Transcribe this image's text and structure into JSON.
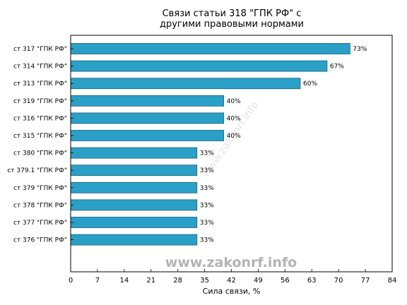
{
  "chart_data": {
    "type": "bar",
    "orientation": "horizontal",
    "title_lines": [
      "Связи статьи 318 \"ГПК РФ\" с",
      "другими правовыми нормами"
    ],
    "xlabel": "Сила связи, %",
    "xlim": [
      0,
      84
    ],
    "xticks": [
      0,
      7,
      14,
      21,
      28,
      35,
      42,
      49,
      56,
      63,
      70,
      77,
      84
    ],
    "categories": [
      "ст 317 \"ГПК РФ\"",
      "ст 314 \"ГПК РФ\"",
      "ст 313 \"ГПК РФ\"",
      "ст 319 \"ГПК РФ\"",
      "ст 316 \"ГПК РФ\"",
      "ст 315 \"ГПК РФ\"",
      "ст 380 \"ГПК РФ\"",
      "ст 379.1 \"ГПК РФ\"",
      "ст 379 \"ГПК РФ\"",
      "ст 378 \"ГПК РФ\"",
      "ст 377 \"ГПК РФ\"",
      "ст 376 \"ГПК РФ\""
    ],
    "values": [
      73,
      67,
      60,
      40,
      40,
      40,
      33,
      33,
      33,
      33,
      33,
      33
    ],
    "value_labels": [
      "73%",
      "67%",
      "60%",
      "40%",
      "40%",
      "40%",
      "33%",
      "33%",
      "33%",
      "33%",
      "33%",
      "33%"
    ],
    "bar_color": "#2aa0c8",
    "grid": false
  },
  "watermark": "www.zakonrf.info"
}
